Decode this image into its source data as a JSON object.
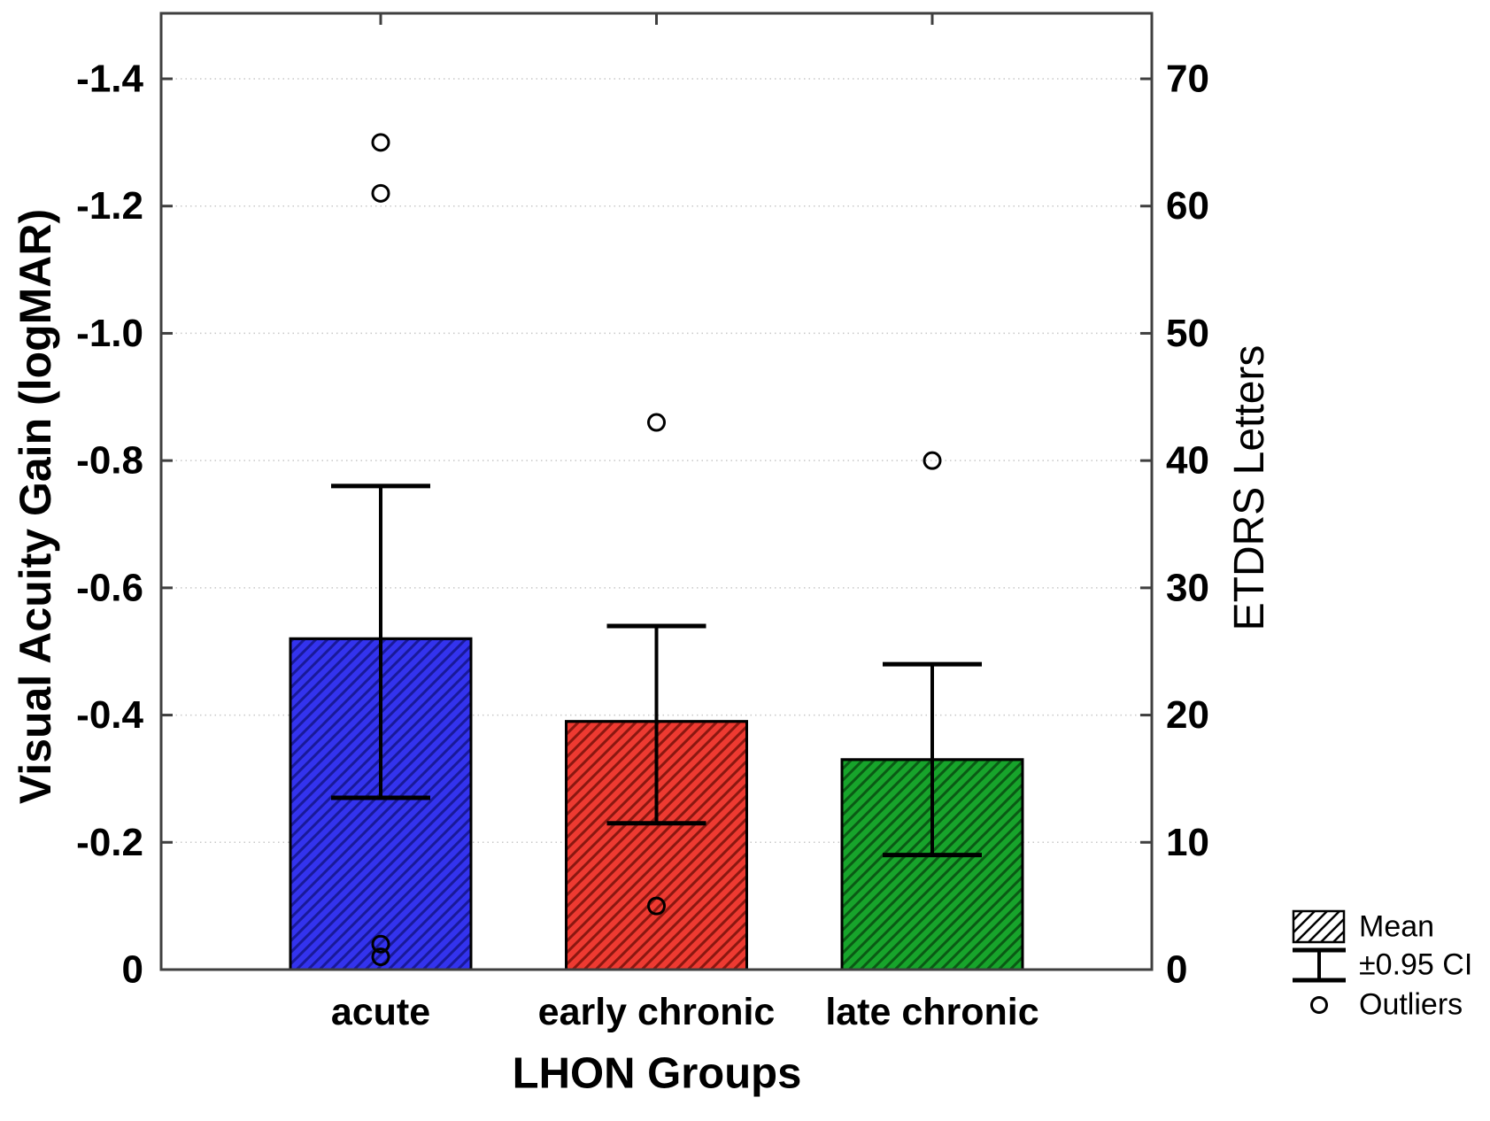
{
  "chart_data": {
    "type": "bar",
    "title": "",
    "xlabel": "LHON Groups",
    "ylabel_left": "Visual Acuity Gain (logMAR)",
    "ylabel_right": "ETDRS Letters",
    "categories": [
      "acute",
      "early chronic",
      "late chronic"
    ],
    "series": [
      {
        "name": "Mean",
        "values": [
          -0.52,
          -0.39,
          -0.33
        ],
        "ci_upper": [
          -0.76,
          -0.54,
          -0.48
        ],
        "ci_lower": [
          -0.27,
          -0.23,
          -0.18
        ],
        "bar_colors": [
          "#3333ee",
          "#ee3a31",
          "#17a42b"
        ],
        "hatch_colors": [
          "#191999",
          "#8b1710",
          "#0a5a14"
        ]
      }
    ],
    "outliers": [
      {
        "category": "acute",
        "values": [
          -1.3,
          -1.22,
          -0.04,
          -0.02
        ]
      },
      {
        "category": "early chronic",
        "values": [
          -0.86,
          -0.1
        ]
      },
      {
        "category": "late chronic",
        "values": [
          -0.8
        ]
      }
    ],
    "y_axis_left": {
      "tick_labels": [
        "-1.4",
        "-1.2",
        "-1.0",
        "-0.8",
        "-0.6",
        "-0.4",
        "-0.2",
        "0"
      ],
      "tick_values": [
        -1.4,
        -1.2,
        -1.0,
        -0.8,
        -0.6,
        -0.4,
        -0.2,
        0
      ],
      "range_bottom": 0,
      "range_top": -1.4,
      "inverted": true
    },
    "y_axis_right": {
      "tick_labels": [
        "70",
        "60",
        "50",
        "40",
        "30",
        "20",
        "10",
        "0"
      ],
      "tick_values": [
        70,
        60,
        50,
        40,
        30,
        20,
        10,
        0
      ]
    },
    "grid": "horizontal-dotted",
    "legend": {
      "position": "bottom-right",
      "items": [
        {
          "icon": "hatched-box",
          "label": "Mean"
        },
        {
          "icon": "error-bar",
          "label": "±0.95 CI"
        },
        {
          "icon": "circle",
          "label": "Outliers"
        }
      ]
    },
    "style_colors": {
      "axis_border": "#3f3f3f",
      "gridline": "#c8c8c8",
      "error_bar": "#000000",
      "outlier_stroke": "#000000",
      "text": "#000000"
    }
  }
}
